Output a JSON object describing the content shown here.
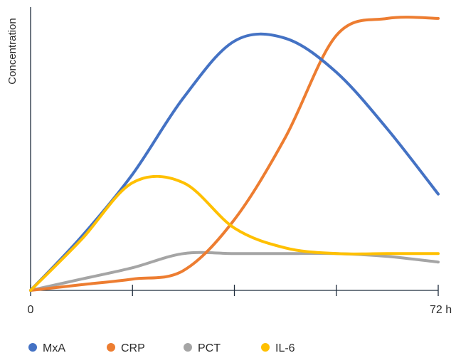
{
  "chart_data": {
    "type": "line",
    "xlabel": "",
    "ylabel": "Concentration",
    "xlim": [
      0,
      72
    ],
    "ylim": [
      0,
      100
    ],
    "x_tick_values": [
      0,
      18,
      36,
      54,
      72
    ],
    "x_tick_labels": [
      "0",
      "",
      "",
      "",
      "72 h"
    ],
    "legend_position": "bottom-left",
    "grid": false,
    "series": [
      {
        "name": "MxA",
        "color": "#4472c4",
        "points": [
          [
            0,
            0
          ],
          [
            9,
            19
          ],
          [
            18,
            41
          ],
          [
            27,
            68
          ],
          [
            36,
            88
          ],
          [
            45,
            89
          ],
          [
            54,
            77
          ],
          [
            63,
            57
          ],
          [
            72,
            34
          ]
        ]
      },
      {
        "name": "CRP",
        "color": "#ed7d31",
        "points": [
          [
            0,
            0
          ],
          [
            9,
            2
          ],
          [
            18,
            4
          ],
          [
            27,
            7
          ],
          [
            36,
            25
          ],
          [
            45,
            54
          ],
          [
            54,
            90
          ],
          [
            63,
            96
          ],
          [
            72,
            96
          ]
        ]
      },
      {
        "name": "PCT",
        "color": "#a5a5a5",
        "points": [
          [
            0,
            0
          ],
          [
            9,
            4
          ],
          [
            18,
            8
          ],
          [
            27,
            13
          ],
          [
            36,
            13
          ],
          [
            45,
            13
          ],
          [
            54,
            13
          ],
          [
            63,
            12
          ],
          [
            72,
            10
          ]
        ]
      },
      {
        "name": "IL-6",
        "color": "#ffc000",
        "points": [
          [
            0,
            0
          ],
          [
            9,
            18
          ],
          [
            18,
            38
          ],
          [
            27,
            38
          ],
          [
            36,
            22
          ],
          [
            45,
            15
          ],
          [
            54,
            13
          ],
          [
            63,
            13
          ],
          [
            72,
            13
          ]
        ]
      }
    ]
  }
}
